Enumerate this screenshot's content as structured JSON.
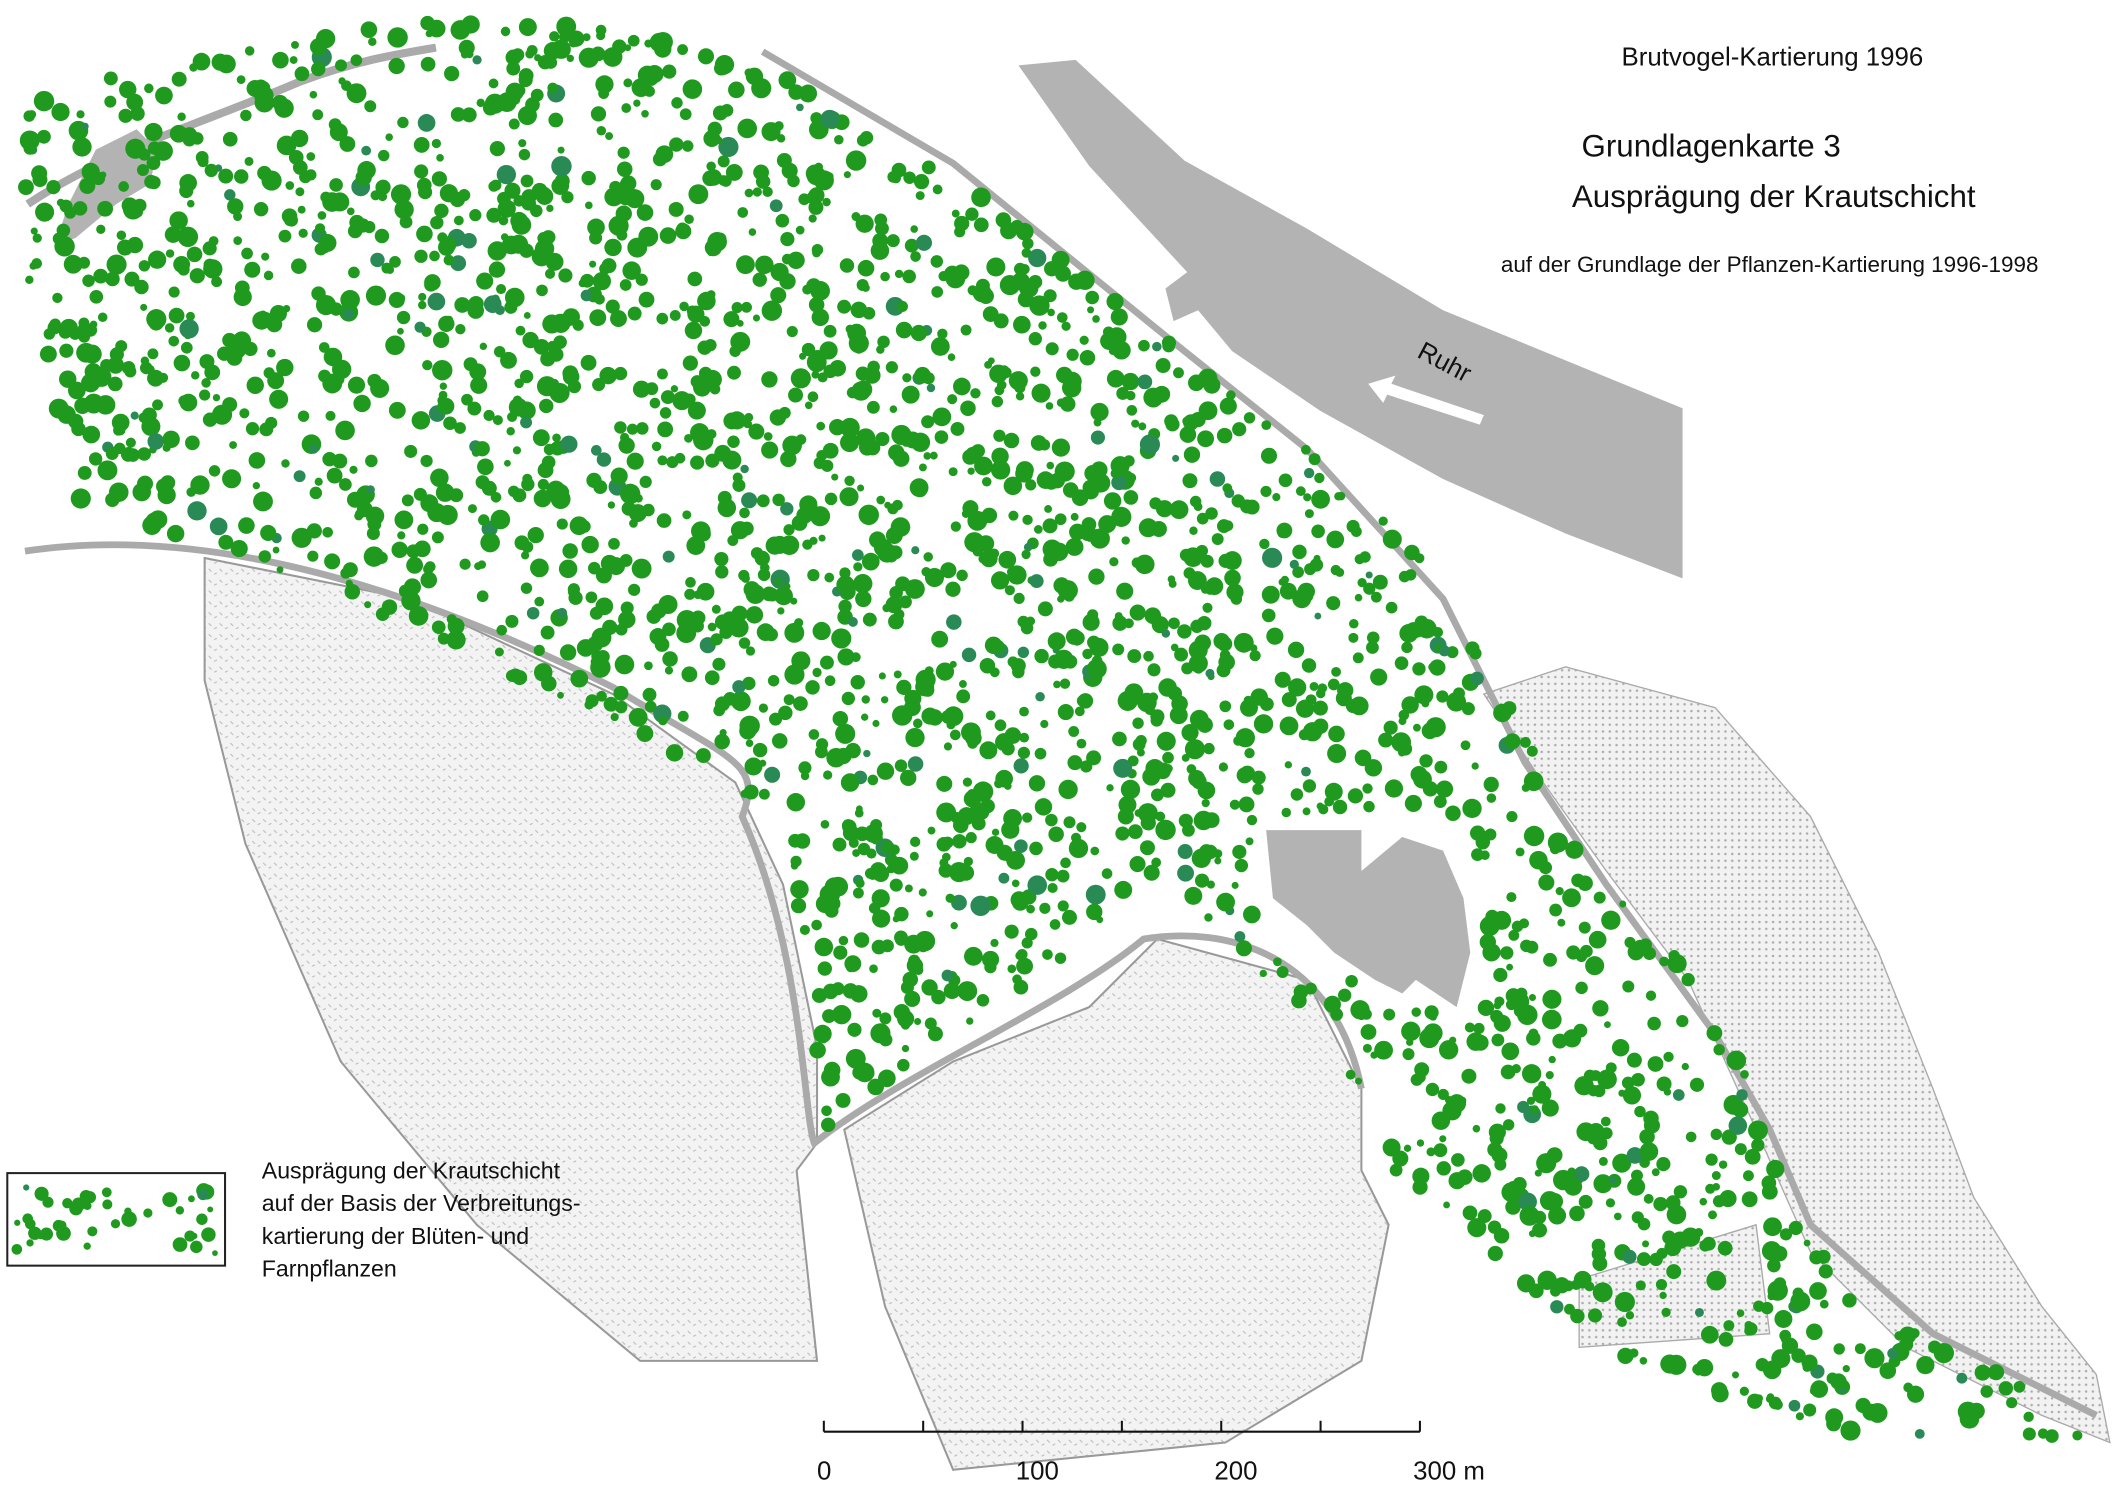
{
  "header": {
    "survey": "Brutvogel-Kartierung 1996",
    "title": "Grundlagenkarte 3",
    "subtitle": "Ausprägung der Krautschicht",
    "source": "auf der Grundlage der Pflanzen-Kartierung 1996-1998"
  },
  "map": {
    "river_label": "Ruhr"
  },
  "legend": {
    "lines": [
      "Ausprägung der Krautschicht",
      "auf der Basis der Verbreitungs-",
      "kartierung der Blüten- und",
      "Farnpflanzen"
    ]
  },
  "scale_bar": {
    "range": [
      0,
      300
    ],
    "ticks": [
      0,
      100,
      200,
      {
        "value": 300,
        "label": "300 m"
      }
    ]
  }
}
